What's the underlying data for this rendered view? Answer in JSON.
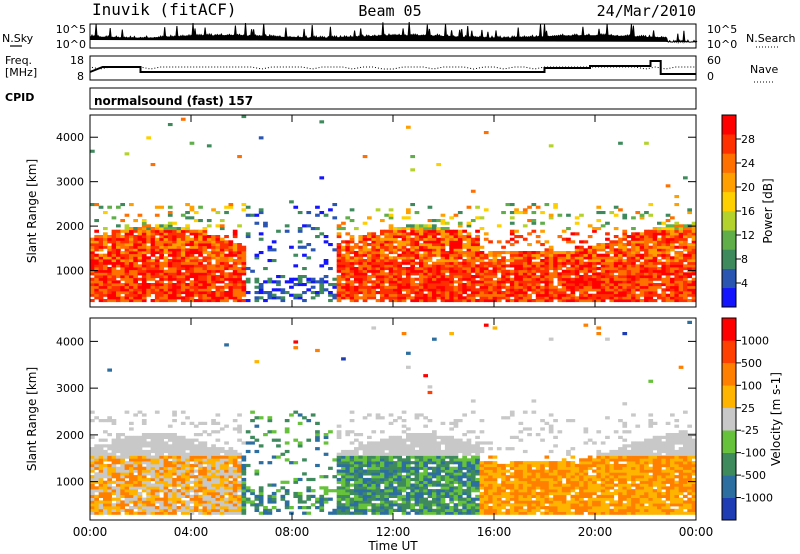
{
  "header": {
    "station": "Inuvik (fitACF)",
    "beam": "Beam 05",
    "date": "24/Mar/2010"
  },
  "noise_panel": {
    "left_label": "N.Sky",
    "right_label": "N.Search",
    "left_ticks": [
      "10^5",
      "10^0"
    ],
    "right_ticks": [
      "10^5",
      "10^0"
    ]
  },
  "freq_panel": {
    "left_label_1": "Freq.",
    "left_label_2": "[MHz]",
    "right_label": "Nave",
    "left_ticks": [
      "18",
      "8"
    ],
    "right_ticks": [
      "60",
      "0"
    ]
  },
  "cpid": {
    "label": "CPID",
    "program": "normalsound (fast) 157"
  },
  "chart_data": [
    {
      "type": "heatmap",
      "title": "Power",
      "ylabel": "Slant Range [km]",
      "xlabel": "Time UT",
      "x_ticks": [
        "00:00",
        "04:00",
        "08:00",
        "12:00",
        "16:00",
        "20:00",
        "00:00"
      ],
      "y_ticks": [
        "1000",
        "2000",
        "3000",
        "4000"
      ],
      "ylim": [
        180,
        4500
      ],
      "xlim": [
        0,
        24
      ],
      "colorbar_label": "Power [dB]",
      "colorbar_ticks": [
        "4",
        "8",
        "12",
        "16",
        "20",
        "24",
        "28"
      ],
      "colorscale": [
        "#1414ff",
        "#2a55b0",
        "#3f8a5c",
        "#5fae4a",
        "#b4d22c",
        "#ffd000",
        "#ffa000",
        "#ff7000",
        "#ff3000",
        "#ff0000"
      ]
    },
    {
      "type": "heatmap",
      "title": "Velocity",
      "ylabel": "Slant Range [km]",
      "xlabel": "Time UT",
      "x_ticks": [
        "00:00",
        "04:00",
        "08:00",
        "12:00",
        "16:00",
        "20:00",
        "00:00"
      ],
      "y_ticks": [
        "1000",
        "2000",
        "3000",
        "4000"
      ],
      "ylim": [
        180,
        4500
      ],
      "xlim": [
        0,
        24
      ],
      "colorbar_label": "Velocity [m s-1]",
      "colorbar_ticks": [
        "1000",
        "500",
        "100",
        "25",
        "-25",
        "-100",
        "-500",
        "-1000"
      ],
      "colorscale": [
        "#1e3cb4",
        "#2c6ea0",
        "#3f8a5c",
        "#66c23a",
        "#c8c8c8",
        "#ffb400",
        "#ff8000",
        "#ff4000",
        "#ff0000"
      ]
    }
  ],
  "x_axis_title": "Time UT"
}
